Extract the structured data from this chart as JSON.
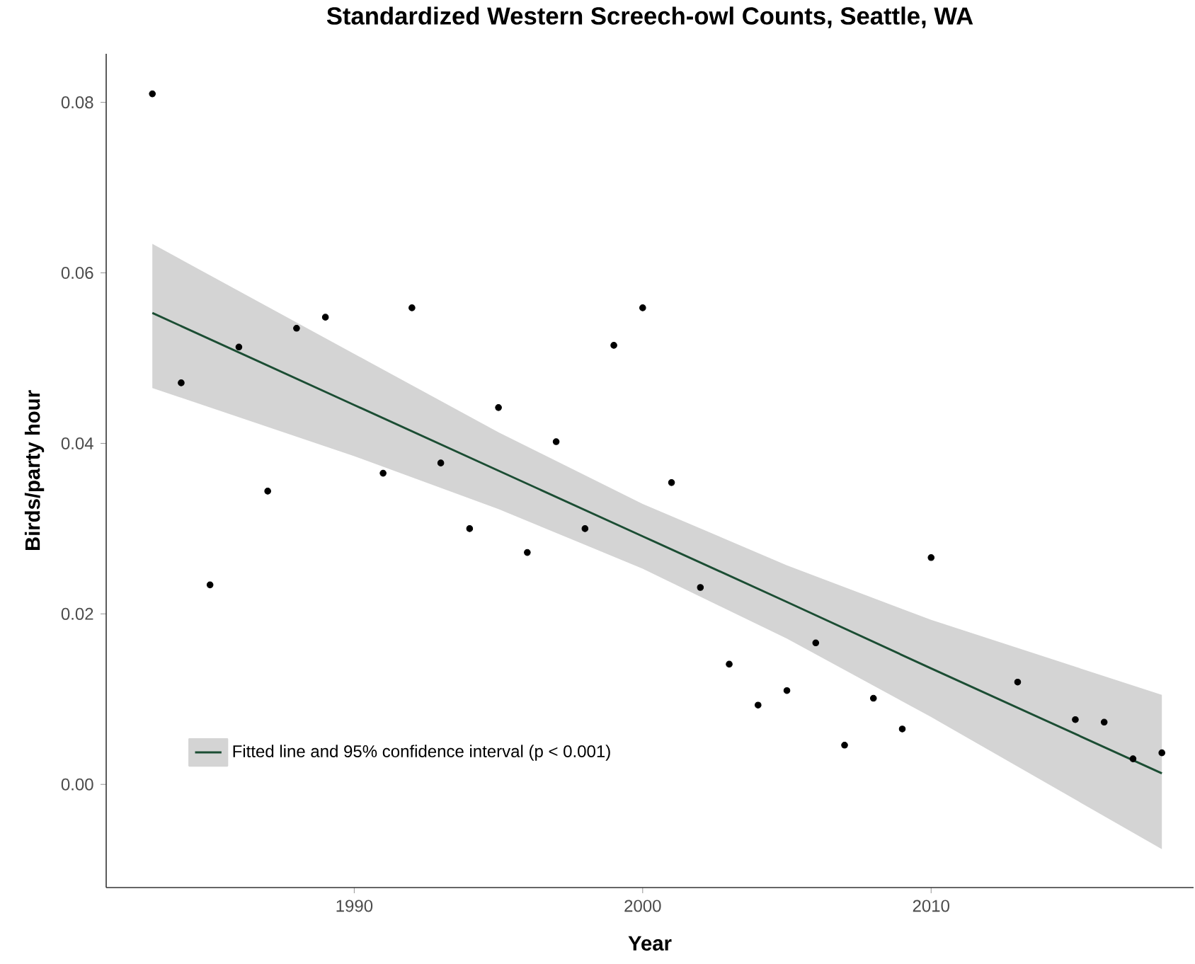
{
  "chart_data": {
    "type": "scatter",
    "title": "Standardized Western Screech-owl Counts, Seattle, WA",
    "xlabel": "Year",
    "ylabel": "Birds/party hour",
    "xlim": [
      1981.4,
      2019.1
    ],
    "ylim": [
      -0.0121,
      0.0857
    ],
    "xticks": [
      1990,
      2000,
      2010
    ],
    "yticks": [
      {
        "value": 0,
        "label": "0.00"
      },
      {
        "value": 0.02,
        "label": "0.02"
      },
      {
        "value": 0.04,
        "label": "0.04"
      },
      {
        "value": 0.06,
        "label": "0.06"
      },
      {
        "value": 0.08,
        "label": "0.08"
      }
    ],
    "legend": "bottom left",
    "marker": "circle",
    "series": [
      {
        "color": "#000000",
        "x": [
          1983,
          1984,
          1985,
          1986,
          1987,
          1988,
          1989,
          1991,
          1992,
          1993,
          1994,
          1995,
          1996,
          1997,
          1998,
          1999,
          2000,
          2001,
          2002,
          2003,
          2004,
          2005,
          2006,
          2007,
          2008,
          2009,
          2010,
          2013,
          2015,
          2016,
          2017,
          2018
        ],
        "values": [
          0.081,
          0.0471,
          0.0234,
          0.0513,
          0.0344,
          0.0535,
          0.0548,
          0.0365,
          0.0559,
          0.0377,
          0.03,
          0.0442,
          0.0272,
          0.0402,
          0.03,
          0.0515,
          0.0559,
          0.0354,
          0.0231,
          0.0141,
          0.0093,
          0.011,
          0.0166,
          0.0046,
          0.0101,
          0.0065,
          0.0266,
          0.012,
          0.0076,
          0.0073,
          0.003,
          0.0037
        ]
      },
      {
        "type": "line",
        "marker": "none",
        "name": "Fitted line and 95% confidence interval (p < 0.001)",
        "color": "#1b4d33",
        "x": [
          1983,
          1990,
          1995,
          2000,
          2005,
          2010,
          2018
        ],
        "values": [
          0.0553,
          0.0445,
          0.0368,
          0.0291,
          0.0214,
          0.0136,
          0.0013
        ],
        "lower": [
          0.0465,
          0.0385,
          0.0323,
          0.0253,
          0.0171,
          0.0079,
          -0.0076
        ],
        "upper": [
          0.0634,
          0.0505,
          0.0413,
          0.0329,
          0.0257,
          0.0193,
          0.0105
        ]
      }
    ]
  }
}
